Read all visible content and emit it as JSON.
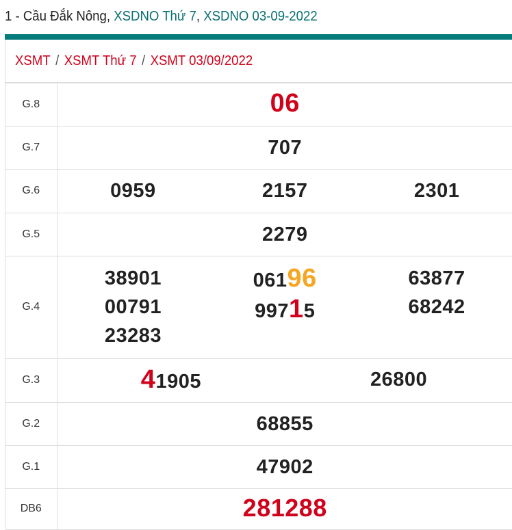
{
  "title": {
    "prefix": "1 - Cầu Đắk Nông, ",
    "link1": "XSDNO Thứ 7",
    "comma": ", ",
    "link2": "XSDNO 03-09-2022"
  },
  "breadcrumb": [
    {
      "label": "XSMT"
    },
    {
      "label": "XSMT Thứ 7"
    },
    {
      "label": "XSMT 03/09/2022"
    }
  ],
  "breadcrumb_separator": "/",
  "colors": {
    "accent": "#067b7c",
    "red": "#d0021b",
    "orange": "#f5a623"
  },
  "rows": [
    {
      "label": "G.8",
      "height": 63,
      "cols": [
        [
          [
            {
              "t": "06",
              "c": "red big"
            }
          ]
        ]
      ]
    },
    {
      "label": "G.7",
      "height": 63,
      "cols": [
        [
          [
            {
              "t": "707"
            }
          ]
        ]
      ]
    },
    {
      "label": "G.6",
      "height": 64,
      "cols": [
        [
          [
            {
              "t": "0959"
            }
          ]
        ],
        [
          [
            {
              "t": "2157"
            }
          ]
        ],
        [
          [
            {
              "t": "2301"
            }
          ]
        ]
      ]
    },
    {
      "label": "G.5",
      "height": 63,
      "cols": [
        [
          [
            {
              "t": "2279"
            }
          ]
        ]
      ]
    },
    {
      "label": "G.4",
      "height": 150,
      "cols": [
        [
          [
            {
              "t": "38901"
            }
          ],
          [
            {
              "t": "00791"
            }
          ],
          [
            {
              "t": "23283"
            }
          ]
        ],
        [
          [
            {
              "t": "061"
            },
            {
              "t": "96",
              "c": "orange big"
            }
          ],
          [
            {
              "t": "997"
            },
            {
              "t": "1",
              "c": "red big"
            },
            {
              "t": "5"
            }
          ]
        ],
        [
          [
            {
              "t": "63877"
            }
          ],
          [
            {
              "t": "68242"
            }
          ]
        ]
      ]
    },
    {
      "label": "G.3",
      "height": 64,
      "cols": [
        [
          [
            {
              "t": "4",
              "c": "red big"
            },
            {
              "t": "1905"
            }
          ]
        ],
        [
          [
            {
              "t": "26800"
            }
          ]
        ]
      ]
    },
    {
      "label": "G.2",
      "height": 63,
      "cols": [
        [
          [
            {
              "t": "68855"
            }
          ]
        ]
      ]
    },
    {
      "label": "G.1",
      "height": 63,
      "cols": [
        [
          [
            {
              "t": "47902"
            }
          ]
        ]
      ]
    },
    {
      "label": "DB6",
      "height": 60,
      "cols": [
        [
          [
            {
              "t": "281288",
              "c": "bigred"
            }
          ]
        ]
      ]
    }
  ]
}
